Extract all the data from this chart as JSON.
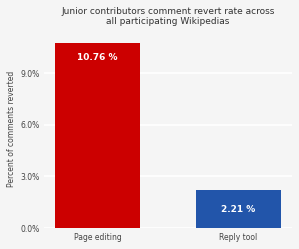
{
  "categories": [
    "Page editing",
    "Reply tool"
  ],
  "values": [
    10.76,
    2.21
  ],
  "bar_colors": [
    "#cc0000",
    "#2255aa"
  ],
  "labels": [
    "10.76 %",
    "2.21 %"
  ],
  "title_line1": "Junior contributors comment revert rate across",
  "title_line2": "all participating Wikipedias",
  "ylabel": "Percent of comments reverted",
  "ylim": [
    0,
    11.5
  ],
  "yticks": [
    0.0,
    3.0,
    6.0,
    9.0
  ],
  "background_color": "#f5f5f5",
  "plot_bg_color": "#f5f5f5",
  "grid_color": "#ffffff",
  "title_fontsize": 6.5,
  "label_fontsize": 6.5,
  "tick_fontsize": 5.5,
  "ylabel_fontsize": 5.5,
  "bar_width": 0.6
}
